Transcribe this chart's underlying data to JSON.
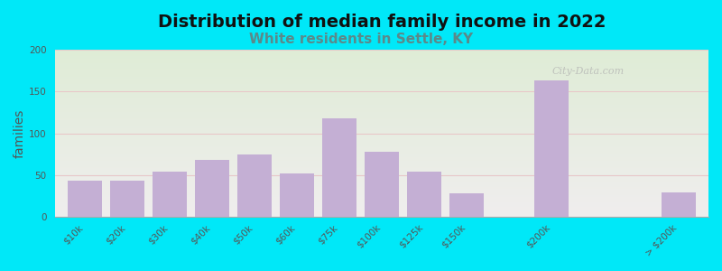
{
  "title": "Distribution of median family income in 2022",
  "subtitle": "White residents in Settle, KY",
  "title_fontsize": 14,
  "subtitle_fontsize": 11,
  "subtitle_color": "#5a8a8a",
  "ylabel": "families",
  "ylabel_fontsize": 10,
  "categories": [
    "$10k",
    "$20k",
    "$30k",
    "$40k",
    "$50k",
    "$60k",
    "$75k",
    "$100k",
    "$125k",
    "$150k",
    "$200k",
    "> $200k"
  ],
  "values": [
    44,
    43,
    54,
    68,
    75,
    52,
    118,
    78,
    54,
    28,
    163,
    29
  ],
  "bar_color": "#c4afd4",
  "bar_edgecolor": "none",
  "ylim": [
    0,
    200
  ],
  "yticks": [
    0,
    50,
    100,
    150,
    200
  ],
  "background_outer": "#00e8f8",
  "background_grad_top": "#dfecd6",
  "background_grad_bottom": "#f0eeee",
  "grid_color": "#e8c8c8",
  "grid_linewidth": 0.8,
  "watermark": "City-Data.com",
  "bar_width": 0.8,
  "positions": [
    0,
    1,
    2,
    3,
    4,
    5,
    6,
    7,
    8,
    9,
    11,
    14
  ],
  "tick_fontsize": 7.5,
  "tick_color": "#555555"
}
